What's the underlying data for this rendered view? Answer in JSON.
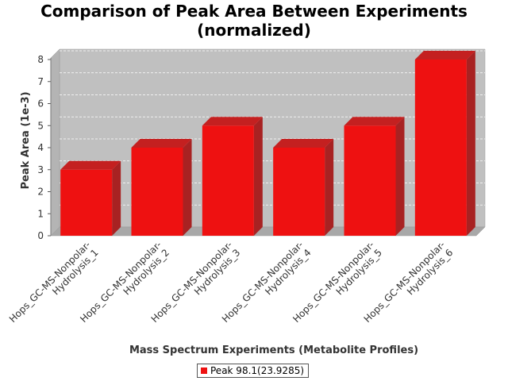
{
  "chart_data": {
    "type": "bar",
    "title_lines": [
      "Comparison of Peak Area Between Experiments",
      "(normalized)"
    ],
    "xlabel": "Mass Spectrum Experiments (Metabolite Profiles)",
    "ylabel": "Peak Area (1e-3)",
    "categories": [
      "Hops_GC-MS-Nonpolar-Hydrolysis_1",
      "Hops_GC-MS-Nonpolar-Hydrolysis_2",
      "Hops_GC-MS-Nonpolar-Hydrolysis_3",
      "Hops_GC-MS-Nonpolar-Hydrolysis_4",
      "Hops_GC-MS-Nonpolar-Hydrolysis_5",
      "Hops_GC-MS-Nonpolar-Hydrolysis_6"
    ],
    "category_label_lines": [
      [
        "Hops_GC-MS-Nonpolar-",
        "Hydrolysis_1"
      ],
      [
        "Hops_GC-MS-Nonpolar-",
        "Hydrolysis_2"
      ],
      [
        "Hops_GC-MS-Nonpolar-",
        "Hydrolysis_3"
      ],
      [
        "Hops_GC-MS-Nonpolar-",
        "Hydrolysis_4"
      ],
      [
        "Hops_GC-MS-Nonpolar-",
        "Hydrolysis_5"
      ],
      [
        "Hops_GC-MS-Nonpolar-",
        "Hydrolysis_6"
      ]
    ],
    "series": [
      {
        "name": "Peak 98.1(23.9285)",
        "values": [
          3,
          4,
          5,
          4,
          5,
          8
        ]
      }
    ],
    "ylim": [
      0,
      8
    ],
    "yticks": [
      "0",
      "1",
      "2",
      "3",
      "4",
      "5",
      "6",
      "7",
      "8"
    ],
    "grid": true,
    "bar_style": "3d",
    "legend_position": "bottom",
    "colors": {
      "bar_front": "#ee1111",
      "bar_side": "#a82222",
      "bar_top": "#c42020",
      "plot_background": "#c0c0c0",
      "plot_floor": "#a8a8a8"
    }
  }
}
